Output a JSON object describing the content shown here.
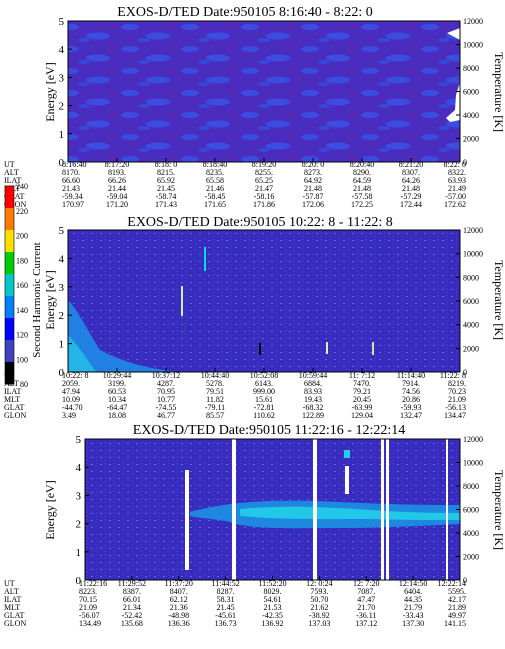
{
  "colorbar": {
    "label": "Second Harmonic Current",
    "ticks": [
      "240",
      "220",
      "200",
      "180",
      "160",
      "140",
      "120",
      "100",
      "80"
    ],
    "colors": [
      "#ff0000",
      "#ff7a00",
      "#ffe000",
      "#00cc00",
      "#00c8c8",
      "#0080ff",
      "#0000ff",
      "#4040c0",
      "#000000"
    ]
  },
  "panels": [
    {
      "title": "EXOS-D/TED   Date:950105   8:16:40 - 8:22: 0",
      "ylabel": "Energy [eV]",
      "ylabel_right": "Temperature [K]",
      "yticks": [
        "0",
        "1",
        "2",
        "3",
        "4",
        "5"
      ],
      "yticks_right": [
        "0",
        "2000",
        "4000",
        "6000",
        "8000",
        "10000",
        "12000"
      ],
      "ut": [
        "8:16:40",
        "8:17:20",
        "8:18: 0",
        "8:18:40",
        "8:19:20",
        "8:20: 0",
        "8:20:40",
        "8:21:20",
        "8:22: 0"
      ],
      "rows": [
        {
          "label": "ALT",
          "values": [
            "8170.",
            "8193.",
            "8215.",
            "8235.",
            "8255.",
            "8273.",
            "8290.",
            "8307.",
            "8322."
          ]
        },
        {
          "label": "ILAT",
          "values": [
            "66.60",
            "66.26",
            "65.92",
            "65.58",
            "65.25",
            "64.92",
            "64.59",
            "64.26",
            "63.93"
          ]
        },
        {
          "label": "MLT",
          "values": [
            "21.43",
            "21.44",
            "21.45",
            "21.46",
            "21.47",
            "21.48",
            "21.48",
            "21.48",
            "21.49"
          ]
        },
        {
          "label": "GLAT",
          "values": [
            "-59.34",
            "-59.04",
            "-58.74",
            "-58.45",
            "-58.16",
            "-57.87",
            "-57.58",
            "-57.29",
            "-57.00"
          ]
        },
        {
          "label": "GLON",
          "values": [
            "170.97",
            "171.20",
            "171.43",
            "171.65",
            "171.86",
            "172.06",
            "172.25",
            "172.44",
            "172.62"
          ]
        }
      ]
    },
    {
      "title": "EXOS-D/TED   Date:950105   10:22: 8 - 11:22: 8",
      "ylabel": "Energy [eV]",
      "ylabel_right": "Temperature [K]",
      "yticks": [
        "0",
        "1",
        "2",
        "3",
        "4",
        "5"
      ],
      "yticks_right": [
        "0",
        "2000",
        "4000",
        "6000",
        "8000",
        "10000",
        "12000"
      ],
      "ut": [
        "10:22: 8",
        "10:29:44",
        "10:37:12",
        "10:44:40",
        "10:52:08",
        "10:59:44",
        "11: 7:12",
        "11:14:40",
        "11:22: 8"
      ],
      "rows": [
        {
          "label": "ALT",
          "values": [
            "2059.",
            "3199.",
            "4287.",
            "5278.",
            "6143.",
            "6884.",
            "7470.",
            "7914.",
            "8219."
          ]
        },
        {
          "label": "ILAT",
          "values": [
            "47.94",
            "60.53",
            "70.95",
            "79.51",
            "999.00",
            "83.93",
            "79.21",
            "74.56",
            "70.23"
          ]
        },
        {
          "label": "MLT",
          "values": [
            "10.09",
            "10.34",
            "10.77",
            "11.82",
            "15.61",
            "19.43",
            "20.45",
            "20.86",
            "21.09"
          ]
        },
        {
          "label": "GLAT",
          "values": [
            "-44.70",
            "-64.47",
            "-74.55",
            "-79.11",
            "-72.81",
            "-68.32",
            "-63.99",
            "-59.93",
            "-56.13"
          ]
        },
        {
          "label": "GLON",
          "values": [
            "3.49",
            "18.08",
            "46.77",
            "85.57",
            "110.62",
            "122.89",
            "129.04",
            "132.47",
            "134.47"
          ]
        }
      ]
    },
    {
      "title": "EXOS-D/TED   Date:950105   11:22:16 - 12:22:14",
      "ylabel": "Energy [eV]",
      "ylabel_right": "Temperature [K]",
      "yticks": [
        "0",
        "1",
        "2",
        "3",
        "4",
        "5"
      ],
      "yticks_right": [
        "0",
        "2000",
        "4000",
        "6000",
        "8000",
        "10000",
        "12000"
      ],
      "ut": [
        "11:22:16",
        "11:29:52",
        "11:37:20",
        "11:44:52",
        "11:52:20",
        "12: 0:24",
        "12: 7:20",
        "12:14:50",
        "12:22:14"
      ],
      "rows": [
        {
          "label": "ALT",
          "values": [
            "8223.",
            "8387.",
            "8407.",
            "8287.",
            "8029.",
            "7593.",
            "7087.",
            "6404.",
            "5595."
          ]
        },
        {
          "label": "ILAT",
          "values": [
            "70.15",
            "66.01",
            "62.12",
            "58.31",
            "54.61",
            "50.70",
            "47.47",
            "44.35",
            "42.17"
          ]
        },
        {
          "label": "MLT",
          "values": [
            "21.09",
            "21.34",
            "21.36",
            "21.45",
            "21.53",
            "21.62",
            "21.70",
            "21.79",
            "21.89"
          ]
        },
        {
          "label": "GLAT",
          "values": [
            "-56.07",
            "-52.42",
            "-48.98",
            "-45.61",
            "-42.35",
            "-38.92",
            "-36.11",
            "-33.43",
            "49.97"
          ]
        },
        {
          "label": "GLON",
          "values": [
            "134.49",
            "135.68",
            "136.36",
            "136.73",
            "136.92",
            "137.03",
            "137.12",
            "137.30",
            "141.15"
          ]
        }
      ]
    }
  ],
  "chart_data": [
    {
      "type": "heatmap",
      "title": "EXOS-D/TED   Date:950105   8:16:40 - 8:22: 0",
      "xlabel": "UT",
      "ylabel": "Energy [eV]",
      "ylabel_right": "Temperature [K]",
      "ylim": [
        0,
        5
      ],
      "ylim_right": [
        0,
        12000
      ],
      "x": [
        "8:16:40",
        "8:17:20",
        "8:18: 0",
        "8:18:40",
        "8:19:20",
        "8:20: 0",
        "8:20:40",
        "8:21:20",
        "8:22: 0"
      ]
    },
    {
      "type": "heatmap",
      "title": "EXOS-D/TED   Date:950105   10:22: 8 - 11:22: 8",
      "xlabel": "UT",
      "ylabel": "Energy [eV]",
      "ylabel_right": "Temperature [K]",
      "ylim": [
        0,
        5
      ],
      "ylim_right": [
        0,
        12000
      ],
      "x": [
        "10:22: 8",
        "10:29:44",
        "10:37:12",
        "10:44:40",
        "10:52:08",
        "10:59:44",
        "11: 7:12",
        "11:14:40",
        "11:22: 8"
      ]
    },
    {
      "type": "heatmap",
      "title": "EXOS-D/TED   Date:950105   11:22:16 - 12:22:14",
      "xlabel": "UT",
      "ylabel": "Energy [eV]",
      "ylabel_right": "Temperature [K]",
      "ylim": [
        0,
        5
      ],
      "ylim_right": [
        0,
        12000
      ],
      "x": [
        "11:22:16",
        "11:29:52",
        "11:37:20",
        "11:44:52",
        "11:52:20",
        "12: 0:24",
        "12: 7:20",
        "12:14:50",
        "12:22:14"
      ]
    }
  ]
}
